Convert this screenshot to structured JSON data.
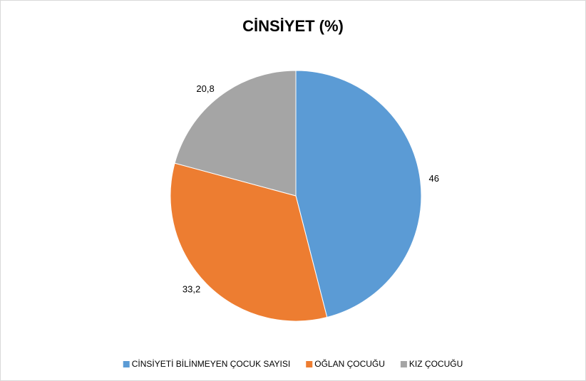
{
  "chart_data": {
    "type": "pie",
    "title": "CİNSİYET (%)",
    "categories": [
      "CİNSİYETİ BİLİNMEYEN ÇOCUK SAYISI",
      "OĞLAN ÇOCUĞU",
      "KIZ ÇOCUĞU"
    ],
    "values": [
      46,
      33.2,
      20.8
    ],
    "value_labels": [
      "46",
      "33,2",
      "20,8"
    ],
    "colors": [
      "#5b9bd5",
      "#ed7d31",
      "#a5a5a5"
    ],
    "legend": "bottom"
  }
}
